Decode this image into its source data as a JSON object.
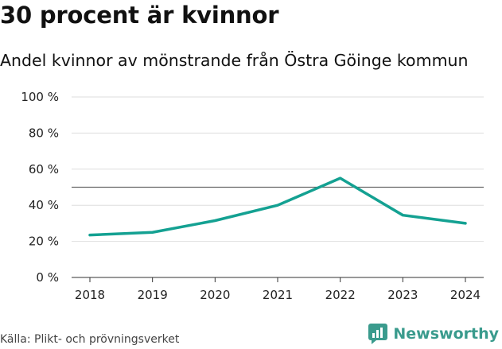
{
  "title": "30 procent är kvinnor",
  "subtitle": "Andel kvinnor av mönstrande från Östra Göinge kommun",
  "source": "Källa: Plikt- och prövningsverket",
  "brand": "Newsworthy",
  "colors": {
    "line": "#14a192",
    "reference": "#666666",
    "grid": "#dedede",
    "brand": "#3a9b8d"
  },
  "chart_data": {
    "type": "line",
    "x": [
      "2018",
      "2019",
      "2020",
      "2021",
      "2022",
      "2023",
      "2024"
    ],
    "series": [
      {
        "values": [
          23.5,
          25,
          31.5,
          40,
          55,
          34.5,
          30
        ]
      }
    ],
    "reference_line": 50,
    "ylim": [
      0,
      100
    ],
    "yticks": [
      0,
      20,
      40,
      60,
      80,
      100
    ],
    "ytick_labels": [
      "0 %",
      "20 %",
      "40 %",
      "60 %",
      "80 %",
      "100 %"
    ],
    "grid": true
  }
}
